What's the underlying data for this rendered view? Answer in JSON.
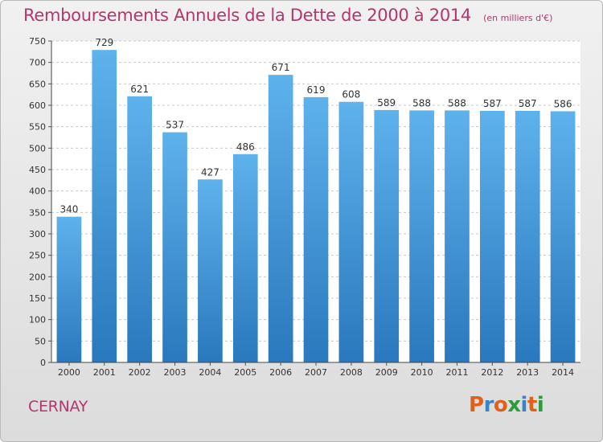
{
  "chart_data": {
    "type": "bar",
    "title": "Remboursements Annuels de la Dette de 2000 à 2014",
    "subtitle": "(en milliers d'€)",
    "categories": [
      "2000",
      "2001",
      "2002",
      "2003",
      "2004",
      "2005",
      "2006",
      "2007",
      "2008",
      "2009",
      "2010",
      "2011",
      "2012",
      "2013",
      "2014"
    ],
    "values": [
      340,
      729,
      621,
      537,
      427,
      486,
      671,
      619,
      608,
      589,
      588,
      588,
      587,
      587,
      586
    ],
    "yticks": [
      0,
      50,
      100,
      150,
      200,
      250,
      300,
      350,
      400,
      450,
      500,
      550,
      600,
      650,
      700,
      750
    ],
    "ylim": [
      0,
      750
    ],
    "xlabel": "",
    "ylabel": "",
    "grid": "horizontal dashed",
    "bar_color": "#3e8fd6"
  },
  "footer": {
    "city": "CERNAY",
    "logo": "Proxiti"
  },
  "colors": {
    "title": "#b4366f",
    "logo_letters": [
      "#e0601c",
      "#3b83c8",
      "#e0601c",
      "#2d9a3b",
      "#3b83c8",
      "#e0601c",
      "#2d9a3b"
    ]
  }
}
